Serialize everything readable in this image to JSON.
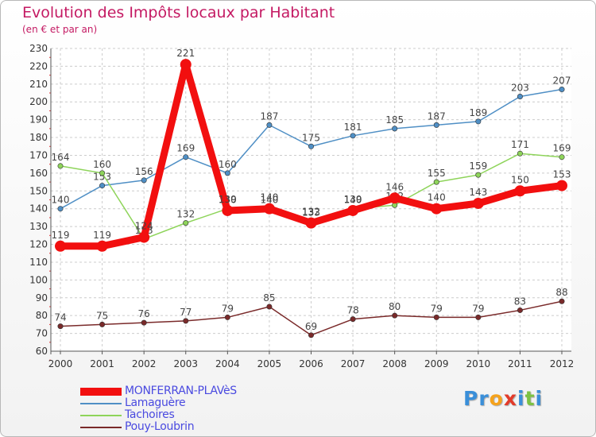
{
  "header": {
    "title": "Evolution des Impôts locaux par Habitant",
    "subtitle": "(en € et par an)"
  },
  "chart_data": {
    "type": "line",
    "title": "Evolution des Impôts locaux par Habitant",
    "subtitle": "(en € et par an)",
    "xlabel": "",
    "ylabel": "",
    "ylim": [
      60,
      230
    ],
    "ytick_step": 10,
    "grid": "horizontal dashed",
    "legend_placement": "bottom-left",
    "categories": [
      "2000",
      "2001",
      "2002",
      "2003",
      "2004",
      "2005",
      "2006",
      "2007",
      "2008",
      "2009",
      "2010",
      "2011",
      "2012"
    ],
    "series": [
      {
        "name": "Lamaguère",
        "color": "#4f8fc5",
        "values": [
          140,
          153,
          156,
          169,
          160,
          187,
          175,
          181,
          185,
          187,
          189,
          203,
          207
        ],
        "labels": [
          "140",
          "153",
          "156",
          "169",
          "160",
          "187",
          "175",
          "181",
          "185",
          "187",
          "189",
          "203",
          "207"
        ]
      },
      {
        "name": "Tachoires",
        "color": "#8ed45a",
        "values": [
          164,
          160,
          123,
          132,
          140,
          140,
          133,
          140,
          142,
          155,
          159,
          171,
          169
        ],
        "labels": [
          "164",
          "160",
          "123",
          "132",
          "140",
          "140",
          "133",
          "140",
          "142",
          "155",
          "159",
          "171",
          "169"
        ]
      },
      {
        "name": "Pouy-Loubrin",
        "color": "#7a2a2a",
        "values": [
          74,
          75,
          76,
          77,
          79,
          85,
          69,
          78,
          80,
          79,
          79,
          83,
          88
        ],
        "labels": [
          "74",
          "75",
          "76",
          "77",
          "79",
          "85",
          "69",
          "78",
          "80",
          "79",
          "79",
          "83",
          "88"
        ]
      },
      {
        "name": "MONFERRAN-PLAVèS",
        "color": "#f20f0f",
        "emphasis": true,
        "values": [
          119,
          119,
          124,
          221,
          139,
          140,
          132,
          139,
          146,
          140,
          143,
          150,
          153
        ],
        "labels": [
          "119",
          "119",
          "124",
          "221",
          "139",
          "140",
          "132",
          "139",
          "146",
          "140",
          "143",
          "150",
          "153"
        ]
      }
    ]
  },
  "legend": {
    "items": [
      {
        "name": "MONFERRAN-PLAVèS",
        "color": "#f20f0f",
        "width": 10
      },
      {
        "name": "Lamaguère",
        "color": "#4f8fc5",
        "width": 1.5
      },
      {
        "name": "Tachoires",
        "color": "#8ed45a",
        "width": 1.5
      },
      {
        "name": "Pouy-Loubrin",
        "color": "#7a2a2a",
        "width": 1.5
      }
    ]
  },
  "logo": {
    "letters": [
      "P",
      "r",
      "o",
      "x",
      "i",
      "t",
      "i"
    ],
    "colors": [
      "#3a8fd9",
      "#3a8fd9",
      "#f5a21b",
      "#e23b2a",
      "#3a8fd9",
      "#7cc243",
      "#3a8fd9"
    ]
  }
}
